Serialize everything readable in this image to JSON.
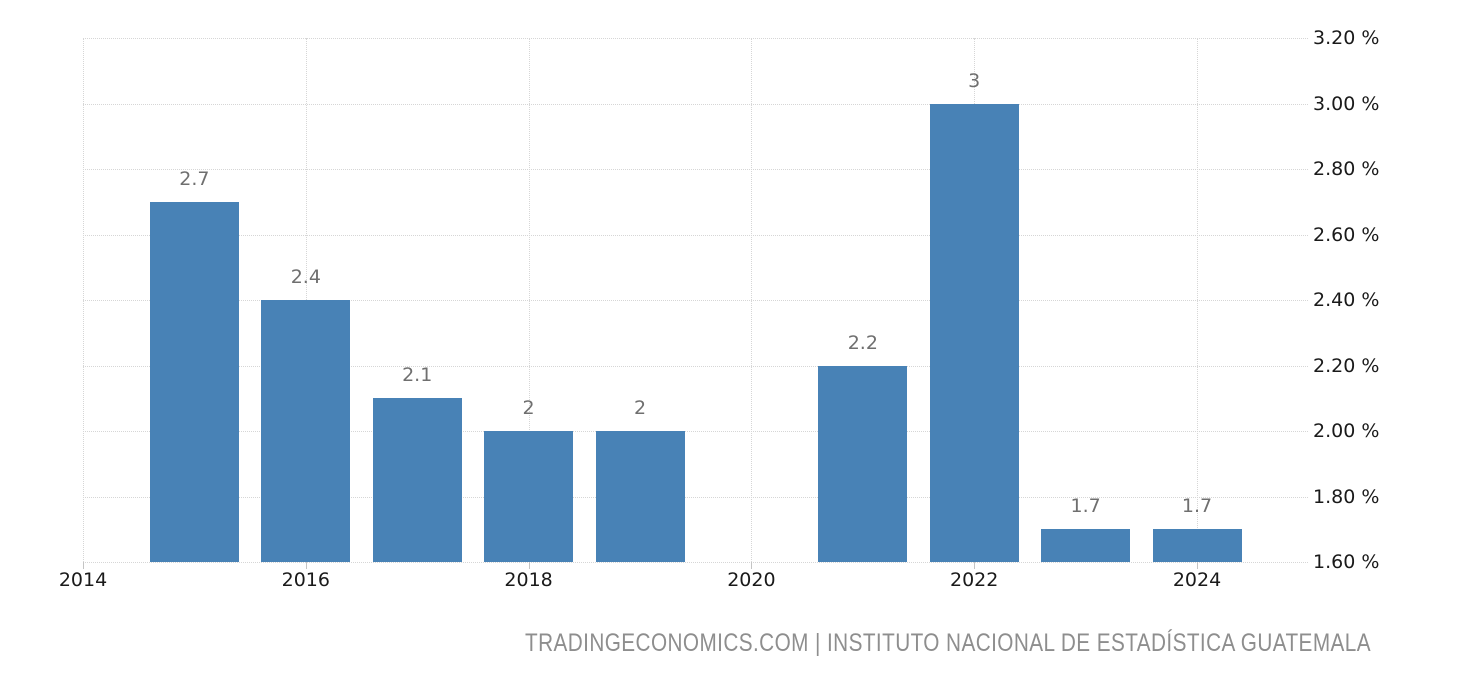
{
  "chart_data": {
    "type": "bar",
    "title": "",
    "ylim": [
      1.6,
      3.2
    ],
    "y_tick_step": 0.2,
    "y_unit": "%",
    "y_tick_labels": [
      "3.20 %",
      "3.00 %",
      "2.80 %",
      "2.60 %",
      "2.40 %",
      "2.20 %",
      "2.00 %",
      "1.80 %",
      "1.60 %"
    ],
    "x_tick_labels": [
      "2014",
      "2016",
      "2018",
      "2020",
      "2022",
      "2024"
    ],
    "grid": true,
    "legend": null,
    "bars": [
      {
        "year": 2015,
        "value": 2.7,
        "label": "2.7"
      },
      {
        "year": 2016,
        "value": 2.4,
        "label": "2.4"
      },
      {
        "year": 2017,
        "value": 2.1,
        "label": "2.1"
      },
      {
        "year": 2018,
        "value": 2.0,
        "label": "2"
      },
      {
        "year": 2019,
        "value": 2.0,
        "label": "2"
      },
      {
        "year": 2021,
        "value": 2.2,
        "label": "2.2"
      },
      {
        "year": 2022,
        "value": 3.0,
        "label": "3"
      },
      {
        "year": 2023,
        "value": 1.7,
        "label": "1.7"
      },
      {
        "year": 2024,
        "value": 1.7,
        "label": "1.7"
      }
    ],
    "colors": {
      "bar": "#4882b6",
      "grid": "#d6d6d6",
      "tick": "#c4c4c4",
      "axis_text": "#1a1a1a",
      "value_label_text": "#6f6f6f",
      "attribution_text": "#8e8e8e"
    },
    "attribution": "TRADINGECONOMICS.COM | INSTITUTO NACIONAL DE ESTADÍSTICA GUATEMALA"
  }
}
